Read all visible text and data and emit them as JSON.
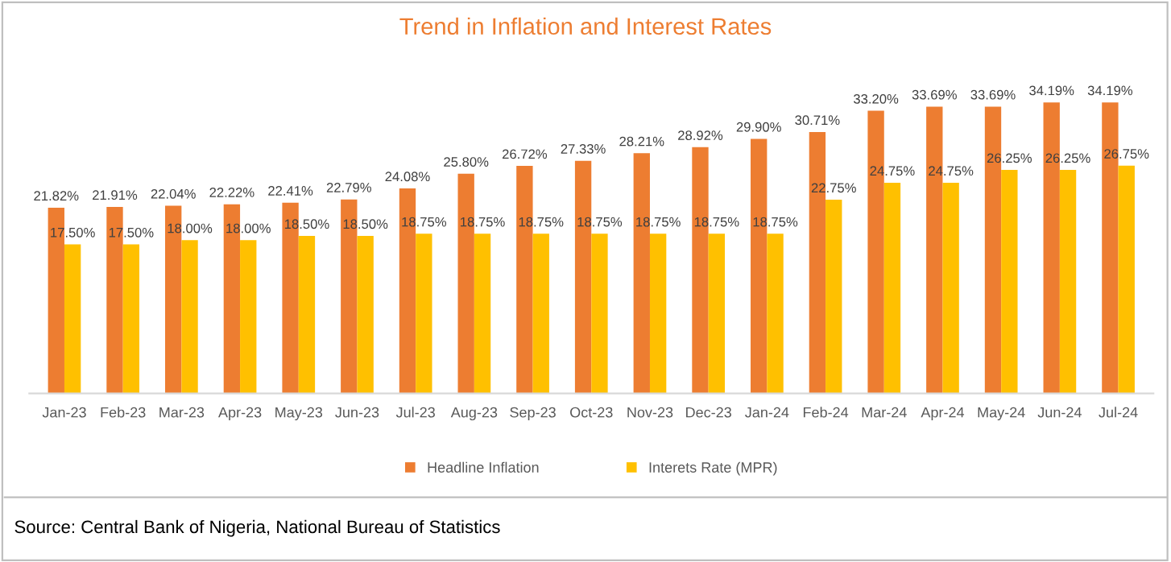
{
  "chart_data": {
    "type": "bar",
    "title": "Trend in Inflation and Interest Rates",
    "categories": [
      "Jan-23",
      "Feb-23",
      "Mar-23",
      "Apr-23",
      "May-23",
      "Jun-23",
      "Jul-23",
      "Aug-23",
      "Sep-23",
      "Oct-23",
      "Nov-23",
      "Dec-23",
      "Jan-24",
      "Feb-24",
      "Mar-24",
      "Apr-24",
      "May-24",
      "Jun-24",
      "Jul-24"
    ],
    "series": [
      {
        "name": "Headline Inflation",
        "color": "#ed7d31",
        "values": [
          21.82,
          21.91,
          22.04,
          22.22,
          22.41,
          22.79,
          24.08,
          25.8,
          26.72,
          27.33,
          28.21,
          28.92,
          29.9,
          30.71,
          33.2,
          33.69,
          33.69,
          34.19,
          34.19
        ],
        "value_labels": [
          "21.82%",
          "21.91%",
          "22.04%",
          "22.22%",
          "22.41%",
          "22.79%",
          "24.08%",
          "25.80%",
          "26.72%",
          "27.33%",
          "28.21%",
          "28.92%",
          "29.90%",
          "30.71%",
          "33.20%",
          "33.69%",
          "33.69%",
          "34.19%",
          "34.19%"
        ]
      },
      {
        "name": "Interets Rate (MPR)",
        "color": "#ffc000",
        "values": [
          17.5,
          17.5,
          18.0,
          18.0,
          18.5,
          18.5,
          18.75,
          18.75,
          18.75,
          18.75,
          18.75,
          18.75,
          18.75,
          22.75,
          24.75,
          24.75,
          26.25,
          26.25,
          26.75
        ],
        "value_labels": [
          "17.50%",
          "17.50%",
          "18.00%",
          "18.00%",
          "18.50%",
          "18.50%",
          "18.75%",
          "18.75%",
          "18.75%",
          "18.75%",
          "18.75%",
          "18.75%",
          "18.75%",
          "22.75%",
          "24.75%",
          "24.75%",
          "26.25%",
          "26.25%",
          "26.75%"
        ]
      }
    ],
    "grid": false,
    "legend": "bottom",
    "tick_labels": "x",
    "annotations": [
      "Source: Central Bank of Nigeria, National Bureau of Statistics"
    ]
  }
}
